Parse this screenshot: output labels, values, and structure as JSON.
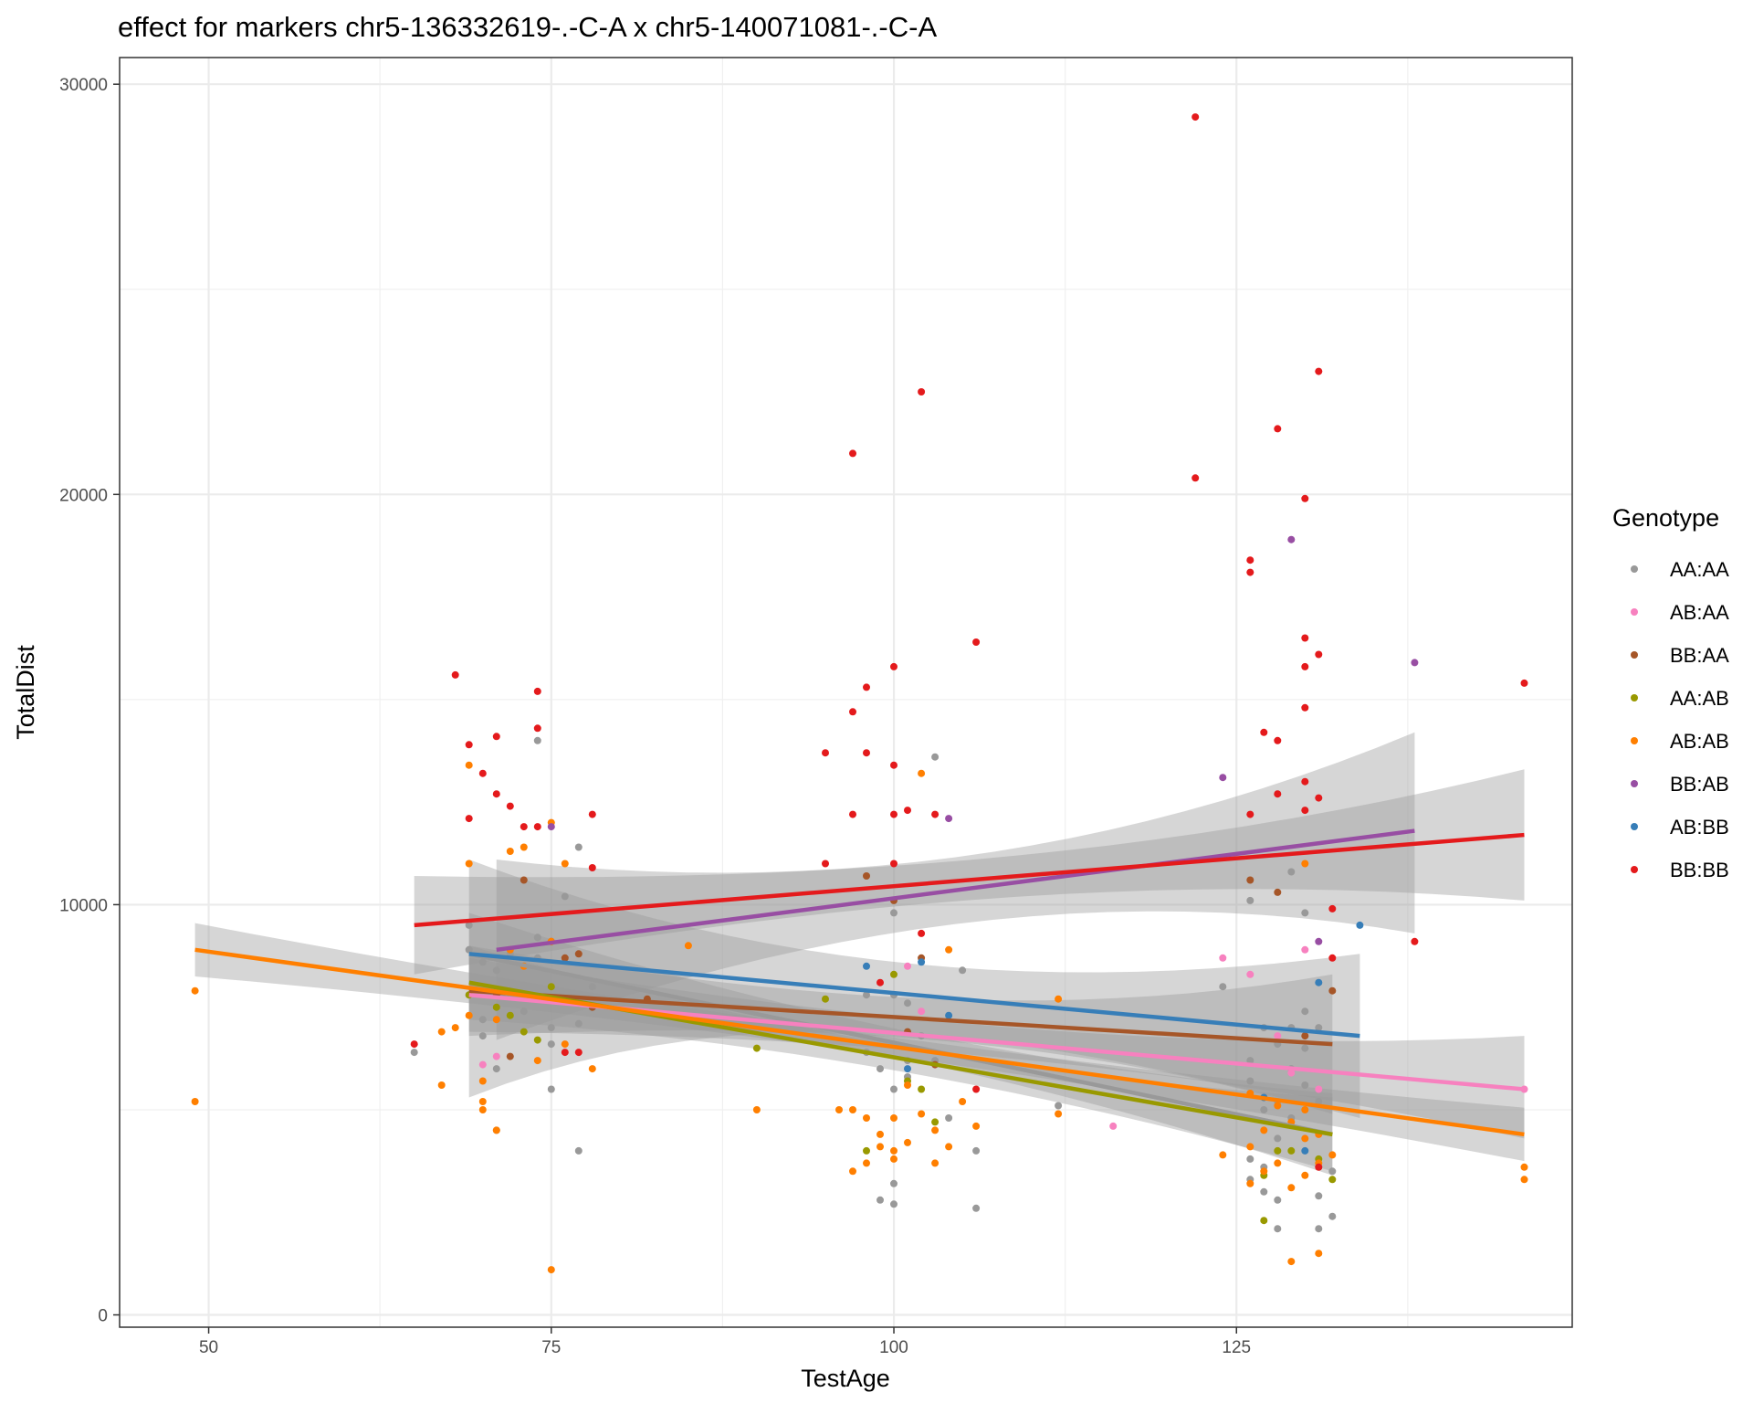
{
  "chart_data": {
    "type": "scatter",
    "title": "effect for markers chr5-136332619-.-C-A x chr5-140071081-.-C-A",
    "xlabel": "TestAge",
    "ylabel": "TotalDist",
    "xlim": [
      43.5,
      149.5
    ],
    "ylim": [
      -300,
      30650
    ],
    "x_ticks": [
      50,
      75,
      100,
      125
    ],
    "y_ticks": [
      0,
      10000,
      20000,
      30000
    ],
    "grid": true,
    "legend": {
      "title": "Genotype",
      "position": "right"
    },
    "series": [
      {
        "name": "AA:AA",
        "color": "#999999",
        "points": [
          [
            65,
            6400
          ],
          [
            69,
            7800
          ],
          [
            69,
            8900
          ],
          [
            69,
            9500
          ],
          [
            70,
            8600
          ],
          [
            70,
            7200
          ],
          [
            70,
            6800
          ],
          [
            71,
            8400
          ],
          [
            71,
            6000
          ],
          [
            71,
            4500
          ],
          [
            72,
            7900
          ],
          [
            72,
            8800
          ],
          [
            73,
            8500
          ],
          [
            73,
            7400
          ],
          [
            74,
            7700
          ],
          [
            74,
            8700
          ],
          [
            74,
            9200
          ],
          [
            74,
            14000
          ],
          [
            75,
            6600
          ],
          [
            75,
            5500
          ],
          [
            75,
            7000
          ],
          [
            76,
            10200
          ],
          [
            77,
            11400
          ],
          [
            77,
            4000
          ],
          [
            77,
            7100
          ],
          [
            78,
            8000
          ],
          [
            98,
            7800
          ],
          [
            98,
            6400
          ],
          [
            99,
            6000
          ],
          [
            99,
            2800
          ],
          [
            100,
            2700
          ],
          [
            100,
            3200
          ],
          [
            100,
            5500
          ],
          [
            100,
            7800
          ],
          [
            100,
            9800
          ],
          [
            101,
            6200
          ],
          [
            101,
            5800
          ],
          [
            101,
            7600
          ],
          [
            102,
            6800
          ],
          [
            103,
            13600
          ],
          [
            103,
            6200
          ],
          [
            104,
            4800
          ],
          [
            105,
            8400
          ],
          [
            106,
            4000
          ],
          [
            106,
            2600
          ],
          [
            112,
            5100
          ],
          [
            124,
            8000
          ],
          [
            126,
            10100
          ],
          [
            126,
            6200
          ],
          [
            126,
            5700
          ],
          [
            126,
            3800
          ],
          [
            126,
            3300
          ],
          [
            127,
            7000
          ],
          [
            127,
            5000
          ],
          [
            127,
            3600
          ],
          [
            127,
            3000
          ],
          [
            128,
            6600
          ],
          [
            128,
            5200
          ],
          [
            128,
            4300
          ],
          [
            128,
            2100
          ],
          [
            128,
            2800
          ],
          [
            129,
            10800
          ],
          [
            129,
            7000
          ],
          [
            129,
            6000
          ],
          [
            129,
            4800
          ],
          [
            130,
            7400
          ],
          [
            130,
            6500
          ],
          [
            130,
            5600
          ],
          [
            130,
            9800
          ],
          [
            131,
            7000
          ],
          [
            131,
            5200
          ],
          [
            131,
            2900
          ],
          [
            131,
            2100
          ],
          [
            132,
            2400
          ],
          [
            132,
            3500
          ]
        ]
      },
      {
        "name": "AB:AA",
        "color": "#F781BF",
        "points": [
          [
            70,
            6100
          ],
          [
            71,
            6300
          ],
          [
            101,
            8500
          ],
          [
            102,
            7400
          ],
          [
            116,
            4600
          ],
          [
            124,
            8700
          ],
          [
            126,
            8300
          ],
          [
            128,
            6800
          ],
          [
            129,
            5900
          ],
          [
            130,
            8900
          ],
          [
            131,
            5500
          ],
          [
            146,
            5500
          ]
        ]
      },
      {
        "name": "BB:AA",
        "color": "#A65628",
        "points": [
          [
            71,
            7800
          ],
          [
            72,
            6300
          ],
          [
            73,
            10600
          ],
          [
            75,
            9100
          ],
          [
            76,
            8700
          ],
          [
            77,
            8800
          ],
          [
            78,
            7500
          ],
          [
            82,
            7700
          ],
          [
            98,
            10700
          ],
          [
            100,
            10100
          ],
          [
            101,
            6900
          ],
          [
            102,
            8700
          ],
          [
            103,
            6100
          ],
          [
            126,
            10600
          ],
          [
            128,
            10300
          ],
          [
            130,
            6800
          ],
          [
            132,
            7900
          ]
        ]
      },
      {
        "name": "AA:AB",
        "color": "#999900",
        "points": [
          [
            69,
            7800
          ],
          [
            71,
            7500
          ],
          [
            72,
            7300
          ],
          [
            73,
            6900
          ],
          [
            74,
            6700
          ],
          [
            75,
            8000
          ],
          [
            90,
            6500
          ],
          [
            95,
            7700
          ],
          [
            98,
            4000
          ],
          [
            100,
            8300
          ],
          [
            101,
            5700
          ],
          [
            102,
            5500
          ],
          [
            103,
            4700
          ],
          [
            127,
            3400
          ],
          [
            127,
            2300
          ],
          [
            128,
            4000
          ],
          [
            129,
            4000
          ],
          [
            131,
            3800
          ],
          [
            132,
            3300
          ]
        ]
      },
      {
        "name": "AB:AB",
        "color": "#FF7F00",
        "points": [
          [
            49,
            7900
          ],
          [
            49,
            5200
          ],
          [
            67,
            6900
          ],
          [
            67,
            5600
          ],
          [
            68,
            7000
          ],
          [
            69,
            13400
          ],
          [
            69,
            11000
          ],
          [
            69,
            7300
          ],
          [
            70,
            5700
          ],
          [
            70,
            5000
          ],
          [
            70,
            5200
          ],
          [
            71,
            4500
          ],
          [
            71,
            7200
          ],
          [
            72,
            11300
          ],
          [
            72,
            8900
          ],
          [
            73,
            11400
          ],
          [
            73,
            8500
          ],
          [
            74,
            6200
          ],
          [
            75,
            12000
          ],
          [
            75,
            9100
          ],
          [
            75,
            1100
          ],
          [
            76,
            11000
          ],
          [
            76,
            6600
          ],
          [
            78,
            6000
          ],
          [
            85,
            9000
          ],
          [
            90,
            5000
          ],
          [
            96,
            5000
          ],
          [
            97,
            5000
          ],
          [
            97,
            3500
          ],
          [
            98,
            4800
          ],
          [
            98,
            3700
          ],
          [
            99,
            4400
          ],
          [
            99,
            4100
          ],
          [
            100,
            4800
          ],
          [
            100,
            4000
          ],
          [
            100,
            3800
          ],
          [
            101,
            5600
          ],
          [
            101,
            4200
          ],
          [
            102,
            4900
          ],
          [
            102,
            13200
          ],
          [
            103,
            3700
          ],
          [
            103,
            4500
          ],
          [
            104,
            4100
          ],
          [
            104,
            8900
          ],
          [
            105,
            5200
          ],
          [
            106,
            4600
          ],
          [
            112,
            7700
          ],
          [
            112,
            4900
          ],
          [
            124,
            3900
          ],
          [
            126,
            5400
          ],
          [
            126,
            4100
          ],
          [
            126,
            3200
          ],
          [
            127,
            4500
          ],
          [
            127,
            3500
          ],
          [
            128,
            5100
          ],
          [
            128,
            3700
          ],
          [
            129,
            4700
          ],
          [
            129,
            3100
          ],
          [
            129,
            1300
          ],
          [
            130,
            5000
          ],
          [
            130,
            4300
          ],
          [
            130,
            3400
          ],
          [
            130,
            11000
          ],
          [
            131,
            4400
          ],
          [
            131,
            3700
          ],
          [
            131,
            1500
          ],
          [
            132,
            3900
          ],
          [
            146,
            3600
          ],
          [
            146,
            3300
          ]
        ]
      },
      {
        "name": "BB:AB",
        "color": "#984EA3",
        "points": [
          [
            75,
            11900
          ],
          [
            104,
            12100
          ],
          [
            124,
            13100
          ],
          [
            129,
            18900
          ],
          [
            131,
            9100
          ],
          [
            138,
            15900
          ]
        ]
      },
      {
        "name": "AB:BB",
        "color": "#377EB8",
        "points": [
          [
            98,
            8500
          ],
          [
            101,
            6000
          ],
          [
            102,
            8600
          ],
          [
            104,
            7300
          ],
          [
            127,
            5300
          ],
          [
            130,
            4000
          ],
          [
            131,
            8100
          ],
          [
            134,
            9500
          ]
        ]
      },
      {
        "name": "BB:BB",
        "color": "#E41A1C",
        "points": [
          [
            65,
            6600
          ],
          [
            68,
            15600
          ],
          [
            69,
            13900
          ],
          [
            69,
            12100
          ],
          [
            70,
            13200
          ],
          [
            71,
            14100
          ],
          [
            71,
            12700
          ],
          [
            72,
            12400
          ],
          [
            73,
            11900
          ],
          [
            74,
            15200
          ],
          [
            74,
            14300
          ],
          [
            74,
            11900
          ],
          [
            76,
            6400
          ],
          [
            77,
            6400
          ],
          [
            78,
            12200
          ],
          [
            78,
            10900
          ],
          [
            95,
            13700
          ],
          [
            95,
            11000
          ],
          [
            97,
            21000
          ],
          [
            97,
            14700
          ],
          [
            97,
            12200
          ],
          [
            98,
            15300
          ],
          [
            98,
            13700
          ],
          [
            99,
            8100
          ],
          [
            100,
            15800
          ],
          [
            100,
            13400
          ],
          [
            100,
            12200
          ],
          [
            100,
            11000
          ],
          [
            101,
            12300
          ],
          [
            102,
            22500
          ],
          [
            102,
            9300
          ],
          [
            103,
            12200
          ],
          [
            106,
            16400
          ],
          [
            106,
            5500
          ],
          [
            122,
            29200
          ],
          [
            122,
            20400
          ],
          [
            126,
            18400
          ],
          [
            126,
            18100
          ],
          [
            126,
            12200
          ],
          [
            127,
            14200
          ],
          [
            128,
            21600
          ],
          [
            128,
            14000
          ],
          [
            128,
            12700
          ],
          [
            130,
            19900
          ],
          [
            130,
            16500
          ],
          [
            130,
            15800
          ],
          [
            130,
            14800
          ],
          [
            130,
            13000
          ],
          [
            130,
            12300
          ],
          [
            131,
            23000
          ],
          [
            131,
            16100
          ],
          [
            131,
            12600
          ],
          [
            131,
            3600
          ],
          [
            132,
            9900
          ],
          [
            132,
            8700
          ],
          [
            138,
            9100
          ],
          [
            146,
            15400
          ]
        ]
      }
    ],
    "fits": [
      {
        "name": "AA:AA",
        "color": "#999999",
        "x": [
          69,
          132
        ],
        "y": [
          8800,
          4400
        ],
        "band": [
          [
            1000,
            1000
          ],
          [
            1000,
            1000
          ]
        ]
      },
      {
        "name": "AB:AA",
        "color": "#F781BF",
        "x": [
          69,
          146
        ],
        "y": [
          7800,
          5500
        ],
        "band": [
          [
            900,
            900
          ],
          [
            1300,
            1200
          ]
        ]
      },
      {
        "name": "BB:AA",
        "color": "#A65628",
        "x": [
          69,
          132
        ],
        "y": [
          7900,
          6600
        ],
        "band": [
          [
            1100,
            1100
          ],
          [
            1700,
            1700
          ]
        ]
      },
      {
        "name": "AA:AB",
        "color": "#999900",
        "x": [
          69,
          132
        ],
        "y": [
          8100,
          4400
        ],
        "band": [
          [
            900,
            900
          ],
          [
            900,
            900
          ]
        ]
      },
      {
        "name": "AB:AB",
        "color": "#FF7F00",
        "x": [
          49,
          146
        ],
        "y": [
          8900,
          4400
        ],
        "band": [
          [
            650,
            650
          ],
          [
            650,
            650
          ]
        ]
      },
      {
        "name": "BB:AB",
        "color": "#984EA3",
        "x": [
          71,
          138
        ],
        "y": [
          8900,
          11800
        ],
        "band": [
          [
            2200,
            2200
          ],
          [
            2400,
            2500
          ]
        ]
      },
      {
        "name": "AB:BB",
        "color": "#377EB8",
        "x": [
          69,
          134
        ],
        "y": [
          8800,
          6800
        ],
        "band": [
          [
            2300,
            3500
          ],
          [
            2000,
            2000
          ]
        ]
      },
      {
        "name": "BB:BB",
        "color": "#E41A1C",
        "x": [
          65,
          146
        ],
        "y": [
          9500,
          11700
        ],
        "band": [
          [
            1200,
            1200
          ],
          [
            1600,
            1600
          ]
        ]
      }
    ]
  }
}
